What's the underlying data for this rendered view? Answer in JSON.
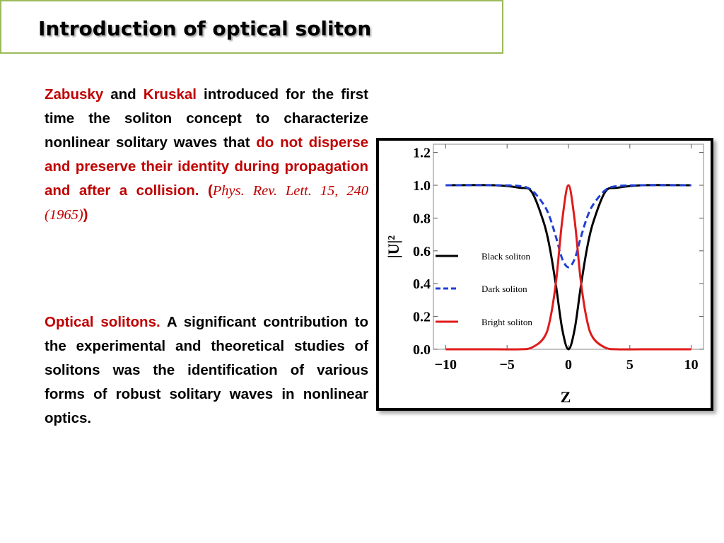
{
  "slide": {
    "title": "Introduction of optical soliton"
  },
  "paragraph1": {
    "name1": "Zabusky",
    "and": " and ",
    "name2": "Kruskal",
    "text1": " introduced for the first time the soliton concept to characterize nonlinear solitary waves that ",
    "highlight": "do not disperse and preserve their identity during propagation and after a collision.",
    "space": " ",
    "paren_open": "(",
    "citation": "Phys. Rev. Lett. 15, 240 (1965)",
    "paren_close": ")"
  },
  "paragraph2": {
    "lead": "Optical solitons.",
    "text": " A significant contribution to the experimental and theoretical studies of solitons was the identification of various forms of robust solitary waves in nonlinear optics."
  },
  "colors": {
    "title_border": "#9bbb59",
    "emphasis_red": "#c00000",
    "black_soliton": "#000000",
    "dark_soliton": "#1f3fd6",
    "bright_soliton": "#e01b1b"
  },
  "chart_data": {
    "type": "line",
    "xlabel": "Z",
    "ylabel": "|U|²",
    "xlim": [
      -11,
      11
    ],
    "ylim": [
      0,
      1.25
    ],
    "xticks": [
      -10,
      -5,
      0,
      5,
      10
    ],
    "xtick_labels": [
      "−10",
      "−5",
      "0",
      "5",
      "10"
    ],
    "yticks": [
      0,
      0.2,
      0.4,
      0.6,
      0.8,
      1.0,
      1.2
    ],
    "ytick_labels": [
      "0.0",
      "0.2",
      "0.4",
      "0.6",
      "0.8",
      "1.0",
      "1.2"
    ],
    "grid": false,
    "legend_position": "left-center",
    "x": [
      -10,
      -6,
      -4,
      -3,
      -2,
      -1.5,
      -1,
      -0.5,
      0,
      0.5,
      1,
      1.5,
      2,
      3,
      4,
      6,
      10
    ],
    "series": [
      {
        "name": "Black soliton",
        "style": "solid",
        "values": [
          1.0,
          1.0,
          0.985,
          0.96,
          0.77,
          0.61,
          0.38,
          0.12,
          0.0,
          0.12,
          0.38,
          0.61,
          0.77,
          0.96,
          0.985,
          1.0,
          1.0
        ]
      },
      {
        "name": "Dark soliton",
        "style": "dashed",
        "values": [
          1.0,
          1.0,
          0.995,
          0.97,
          0.88,
          0.8,
          0.68,
          0.55,
          0.5,
          0.55,
          0.68,
          0.8,
          0.88,
          0.97,
          0.995,
          1.0,
          1.0
        ]
      },
      {
        "name": "Bright soliton",
        "style": "solid",
        "values": [
          0.0,
          0.0,
          0.0,
          0.01,
          0.07,
          0.18,
          0.42,
          0.79,
          1.0,
          0.79,
          0.42,
          0.18,
          0.07,
          0.01,
          0.0,
          0.0,
          0.0
        ]
      }
    ]
  }
}
